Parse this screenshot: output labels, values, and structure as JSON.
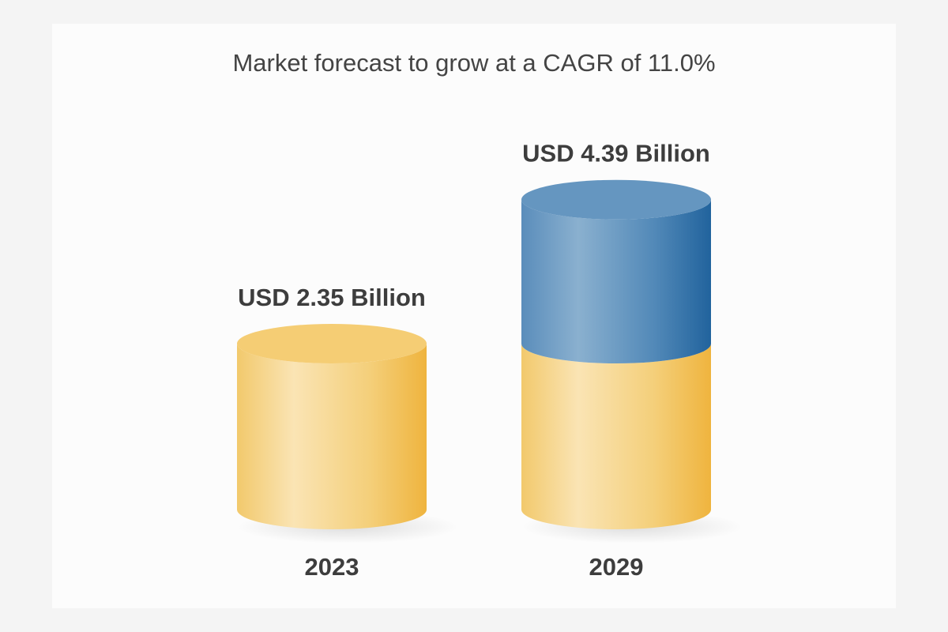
{
  "chart_data": {
    "type": "bar",
    "style": "3d-cylinder",
    "title": "Market forecast to grow at a CAGR of 11.0%",
    "categories": [
      "2023",
      "2029"
    ],
    "values": [
      2.35,
      4.39
    ],
    "data_labels": [
      "USD 2.35 Billion",
      "USD 4.39 Billion"
    ],
    "unit": "USD Billion",
    "grid": false,
    "colors": {
      "base": "#f2c766",
      "growth": "#4f86b5"
    }
  }
}
